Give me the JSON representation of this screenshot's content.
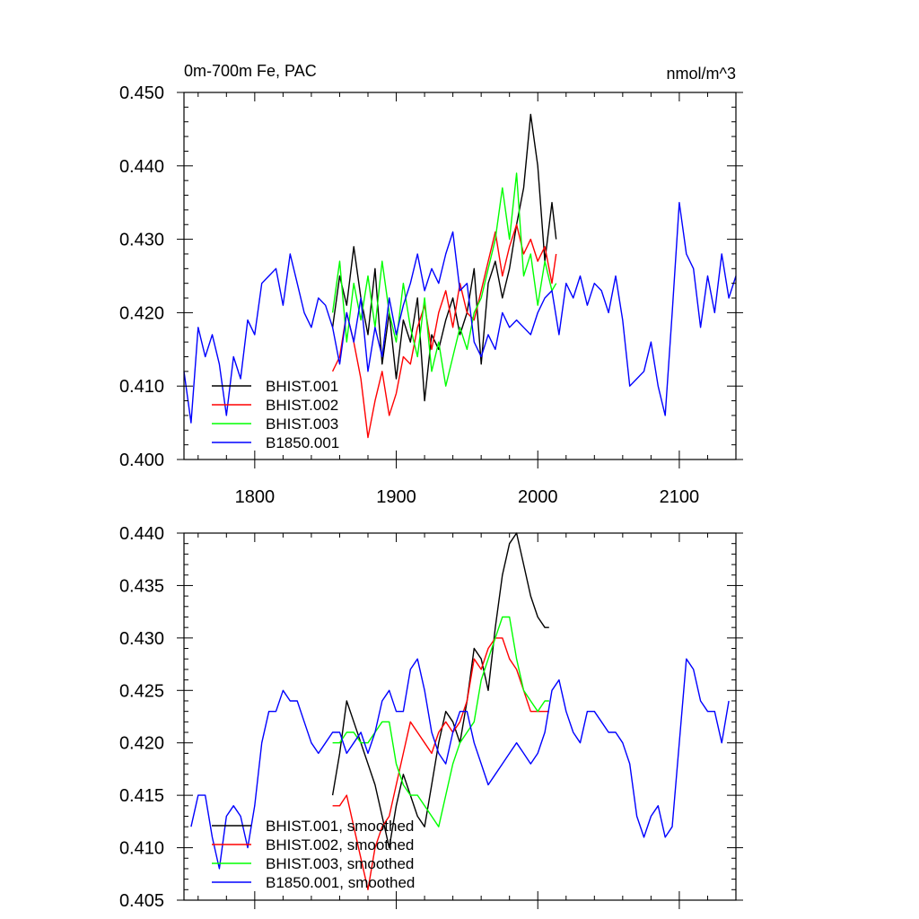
{
  "chart_data": [
    {
      "type": "line",
      "title": "0m-700m Fe, PAC",
      "units": "nmol/m^3",
      "xlim": [
        1750,
        2140
      ],
      "ylim": [
        0.4,
        0.45
      ],
      "xticks": [
        1800,
        1900,
        2000,
        2100
      ],
      "xtick_labels": [
        "1800",
        "1900",
        "2000",
        "2100"
      ],
      "yticks": [
        0.4,
        0.41,
        0.42,
        0.43,
        0.44,
        0.45
      ],
      "ytick_labels": [
        "0.400",
        "0.410",
        "0.420",
        "0.430",
        "0.440",
        "0.450"
      ],
      "legend_position": "bottom-left",
      "series": [
        {
          "name": "BHIST.001",
          "color": "#000000",
          "x": [
            1855,
            1860,
            1865,
            1870,
            1875,
            1880,
            1885,
            1890,
            1895,
            1900,
            1905,
            1910,
            1915,
            1920,
            1925,
            1930,
            1935,
            1940,
            1945,
            1950,
            1955,
            1960,
            1965,
            1970,
            1975,
            1980,
            1985,
            1990,
            1995,
            2000,
            2005,
            2010,
            2013
          ],
          "y": [
            0.418,
            0.425,
            0.421,
            0.429,
            0.422,
            0.417,
            0.426,
            0.413,
            0.42,
            0.411,
            0.419,
            0.416,
            0.422,
            0.408,
            0.417,
            0.415,
            0.419,
            0.422,
            0.417,
            0.42,
            0.426,
            0.413,
            0.424,
            0.427,
            0.422,
            0.426,
            0.432,
            0.437,
            0.447,
            0.44,
            0.427,
            0.435,
            0.43
          ]
        },
        {
          "name": "BHIST.002",
          "color": "#ff0000",
          "x": [
            1855,
            1860,
            1865,
            1870,
            1875,
            1880,
            1885,
            1890,
            1895,
            1900,
            1905,
            1910,
            1915,
            1920,
            1925,
            1930,
            1935,
            1940,
            1945,
            1950,
            1955,
            1960,
            1965,
            1970,
            1975,
            1980,
            1985,
            1990,
            1995,
            2000,
            2005,
            2010,
            2013
          ],
          "y": [
            0.412,
            0.414,
            0.42,
            0.416,
            0.411,
            0.403,
            0.408,
            0.412,
            0.406,
            0.409,
            0.414,
            0.413,
            0.418,
            0.421,
            0.415,
            0.42,
            0.423,
            0.418,
            0.424,
            0.42,
            0.419,
            0.423,
            0.427,
            0.431,
            0.425,
            0.429,
            0.432,
            0.428,
            0.43,
            0.427,
            0.429,
            0.424,
            0.428
          ]
        },
        {
          "name": "BHIST.003",
          "color": "#00ff00",
          "x": [
            1855,
            1860,
            1865,
            1870,
            1875,
            1880,
            1885,
            1890,
            1895,
            1900,
            1905,
            1910,
            1915,
            1920,
            1925,
            1930,
            1935,
            1940,
            1945,
            1950,
            1955,
            1960,
            1965,
            1970,
            1975,
            1980,
            1985,
            1990,
            1995,
            2000,
            2005,
            2010,
            2013
          ],
          "y": [
            0.42,
            0.427,
            0.416,
            0.424,
            0.419,
            0.425,
            0.418,
            0.427,
            0.42,
            0.416,
            0.424,
            0.418,
            0.414,
            0.422,
            0.412,
            0.416,
            0.41,
            0.414,
            0.418,
            0.415,
            0.42,
            0.422,
            0.426,
            0.43,
            0.437,
            0.43,
            0.439,
            0.425,
            0.428,
            0.421,
            0.427,
            0.423,
            0.424
          ]
        },
        {
          "name": "B1850.001",
          "color": "#0000ff",
          "x": [
            1750,
            1755,
            1760,
            1765,
            1770,
            1775,
            1780,
            1785,
            1790,
            1795,
            1800,
            1805,
            1810,
            1815,
            1820,
            1825,
            1830,
            1835,
            1840,
            1845,
            1850,
            1855,
            1860,
            1865,
            1870,
            1875,
            1880,
            1885,
            1890,
            1895,
            1900,
            1905,
            1910,
            1915,
            1920,
            1925,
            1930,
            1935,
            1940,
            1945,
            1950,
            1955,
            1960,
            1965,
            1970,
            1975,
            1980,
            1985,
            1990,
            1995,
            2000,
            2005,
            2010,
            2015,
            2020,
            2025,
            2030,
            2035,
            2040,
            2045,
            2050,
            2055,
            2060,
            2065,
            2070,
            2075,
            2080,
            2085,
            2090,
            2095,
            2100,
            2105,
            2110,
            2115,
            2120,
            2125,
            2130,
            2135,
            2140
          ],
          "y": [
            0.412,
            0.405,
            0.418,
            0.414,
            0.417,
            0.413,
            0.406,
            0.414,
            0.411,
            0.419,
            0.417,
            0.424,
            0.425,
            0.426,
            0.421,
            0.428,
            0.424,
            0.42,
            0.418,
            0.422,
            0.421,
            0.418,
            0.413,
            0.42,
            0.416,
            0.422,
            0.412,
            0.418,
            0.414,
            0.422,
            0.417,
            0.421,
            0.424,
            0.428,
            0.423,
            0.426,
            0.424,
            0.428,
            0.431,
            0.423,
            0.424,
            0.416,
            0.414,
            0.417,
            0.415,
            0.42,
            0.418,
            0.419,
            0.418,
            0.417,
            0.42,
            0.422,
            0.423,
            0.417,
            0.424,
            0.422,
            0.425,
            0.421,
            0.424,
            0.423,
            0.42,
            0.425,
            0.419,
            0.41,
            0.411,
            0.412,
            0.416,
            0.41,
            0.406,
            0.42,
            0.435,
            0.428,
            0.426,
            0.418,
            0.425,
            0.42,
            0.428,
            0.422,
            0.425
          ]
        }
      ]
    },
    {
      "type": "line",
      "xlim": [
        1750,
        2140
      ],
      "ylim": [
        0.405,
        0.44
      ],
      "xticks": [
        1800,
        1900,
        2000,
        2100
      ],
      "yticks": [
        0.405,
        0.41,
        0.415,
        0.42,
        0.425,
        0.43,
        0.435,
        0.44
      ],
      "ytick_labels": [
        "0.405",
        "0.410",
        "0.415",
        "0.420",
        "0.425",
        "0.430",
        "0.435",
        "0.440"
      ],
      "legend_position": "bottom-left",
      "series": [
        {
          "name": "BHIST.001, smoothed",
          "color": "#000000",
          "x": [
            1855,
            1860,
            1865,
            1870,
            1875,
            1880,
            1885,
            1890,
            1895,
            1900,
            1905,
            1910,
            1915,
            1920,
            1925,
            1930,
            1935,
            1940,
            1945,
            1950,
            1955,
            1960,
            1965,
            1970,
            1975,
            1980,
            1985,
            1990,
            1995,
            2000,
            2005,
            2008
          ],
          "y": [
            0.415,
            0.419,
            0.424,
            0.422,
            0.42,
            0.418,
            0.416,
            0.413,
            0.41,
            0.414,
            0.417,
            0.415,
            0.413,
            0.412,
            0.416,
            0.42,
            0.423,
            0.422,
            0.42,
            0.424,
            0.429,
            0.428,
            0.425,
            0.431,
            0.436,
            0.439,
            0.44,
            0.437,
            0.434,
            0.432,
            0.431,
            0.431
          ]
        },
        {
          "name": "BHIST.002, smoothed",
          "color": "#ff0000",
          "x": [
            1855,
            1860,
            1865,
            1870,
            1875,
            1880,
            1885,
            1890,
            1895,
            1900,
            1905,
            1910,
            1915,
            1920,
            1925,
            1930,
            1935,
            1940,
            1945,
            1950,
            1955,
            1960,
            1965,
            1970,
            1975,
            1980,
            1985,
            1990,
            1995,
            2000,
            2005,
            2008
          ],
          "y": [
            0.414,
            0.414,
            0.415,
            0.412,
            0.409,
            0.406,
            0.41,
            0.412,
            0.413,
            0.416,
            0.419,
            0.422,
            0.421,
            0.42,
            0.419,
            0.421,
            0.422,
            0.421,
            0.422,
            0.424,
            0.428,
            0.427,
            0.429,
            0.43,
            0.43,
            0.428,
            0.427,
            0.425,
            0.423,
            0.423,
            0.423,
            0.423
          ]
        },
        {
          "name": "BHIST.003, smoothed",
          "color": "#00ff00",
          "x": [
            1855,
            1860,
            1865,
            1870,
            1875,
            1880,
            1885,
            1890,
            1895,
            1900,
            1905,
            1910,
            1915,
            1920,
            1925,
            1930,
            1935,
            1940,
            1945,
            1950,
            1955,
            1960,
            1965,
            1970,
            1975,
            1980,
            1985,
            1990,
            1995,
            2000,
            2005,
            2008
          ],
          "y": [
            0.42,
            0.42,
            0.421,
            0.421,
            0.42,
            0.42,
            0.421,
            0.422,
            0.422,
            0.418,
            0.416,
            0.415,
            0.415,
            0.414,
            0.413,
            0.412,
            0.415,
            0.418,
            0.42,
            0.421,
            0.422,
            0.426,
            0.428,
            0.43,
            0.432,
            0.432,
            0.428,
            0.425,
            0.424,
            0.423,
            0.424,
            0.424
          ]
        },
        {
          "name": "B1850.001, smoothed",
          "color": "#0000ff",
          "x": [
            1755,
            1760,
            1765,
            1770,
            1775,
            1780,
            1785,
            1790,
            1795,
            1800,
            1805,
            1810,
            1815,
            1820,
            1825,
            1830,
            1835,
            1840,
            1845,
            1850,
            1855,
            1860,
            1865,
            1870,
            1875,
            1880,
            1885,
            1890,
            1895,
            1900,
            1905,
            1910,
            1915,
            1920,
            1925,
            1930,
            1935,
            1940,
            1945,
            1950,
            1955,
            1960,
            1965,
            1970,
            1975,
            1980,
            1985,
            1990,
            1995,
            2000,
            2005,
            2010,
            2015,
            2020,
            2025,
            2030,
            2035,
            2040,
            2045,
            2050,
            2055,
            2060,
            2065,
            2070,
            2075,
            2080,
            2085,
            2090,
            2095,
            2100,
            2105,
            2110,
            2115,
            2120,
            2125,
            2130,
            2135
          ],
          "y": [
            0.412,
            0.415,
            0.415,
            0.411,
            0.408,
            0.413,
            0.414,
            0.413,
            0.41,
            0.414,
            0.42,
            0.423,
            0.423,
            0.425,
            0.424,
            0.424,
            0.422,
            0.42,
            0.419,
            0.42,
            0.421,
            0.421,
            0.419,
            0.42,
            0.421,
            0.419,
            0.421,
            0.424,
            0.425,
            0.423,
            0.423,
            0.427,
            0.428,
            0.425,
            0.421,
            0.419,
            0.418,
            0.421,
            0.423,
            0.423,
            0.42,
            0.418,
            0.416,
            0.417,
            0.418,
            0.419,
            0.42,
            0.419,
            0.418,
            0.419,
            0.421,
            0.425,
            0.426,
            0.423,
            0.421,
            0.42,
            0.423,
            0.423,
            0.422,
            0.421,
            0.421,
            0.42,
            0.418,
            0.413,
            0.411,
            0.413,
            0.414,
            0.411,
            0.412,
            0.42,
            0.428,
            0.427,
            0.424,
            0.423,
            0.423,
            0.42,
            0.424
          ]
        }
      ]
    }
  ]
}
